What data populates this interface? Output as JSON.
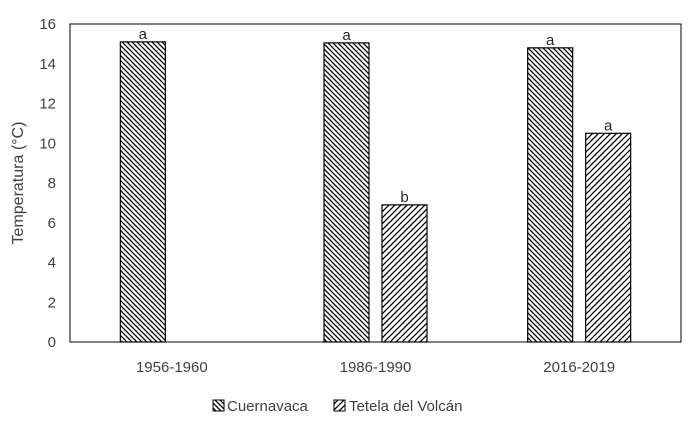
{
  "chart_data": {
    "type": "bar",
    "title": "",
    "xlabel": "",
    "ylabel": "Temperatura (°C)",
    "categories": [
      "1956-1960",
      "1986-1990",
      "2016-2019"
    ],
    "ylim": [
      0,
      16
    ],
    "yticks": [
      0,
      2,
      4,
      6,
      8,
      10,
      12,
      14,
      16
    ],
    "grid": false,
    "legend_position": "bottom",
    "series": [
      {
        "name": "Cuernavaca",
        "values": [
          15.1,
          15.05,
          14.8
        ],
        "labels": [
          "a",
          "a",
          "a"
        ],
        "pattern": "hatch-backslash",
        "color": "#000000"
      },
      {
        "name": "Tetela del Volcán",
        "values": [
          null,
          6.9,
          10.5
        ],
        "labels": [
          null,
          "b",
          "a"
        ],
        "pattern": "hatch-slash",
        "color": "#000000"
      }
    ]
  }
}
